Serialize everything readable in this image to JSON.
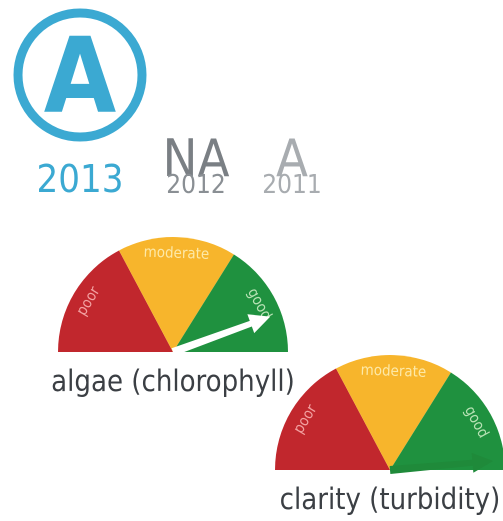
{
  "current_grade": {
    "letter": "A",
    "year": "2013"
  },
  "previous_grades": [
    {
      "letter": "NA",
      "year": "2012"
    },
    {
      "letter": "A",
      "year": "2011"
    }
  ],
  "gauges": [
    {
      "label": "algae (chlorophyll)",
      "zones": [
        "poor",
        "moderate",
        "good"
      ]
    },
    {
      "label": "clarity (turbidity)",
      "zones": [
        "poor",
        "moderate",
        "good"
      ]
    }
  ]
}
